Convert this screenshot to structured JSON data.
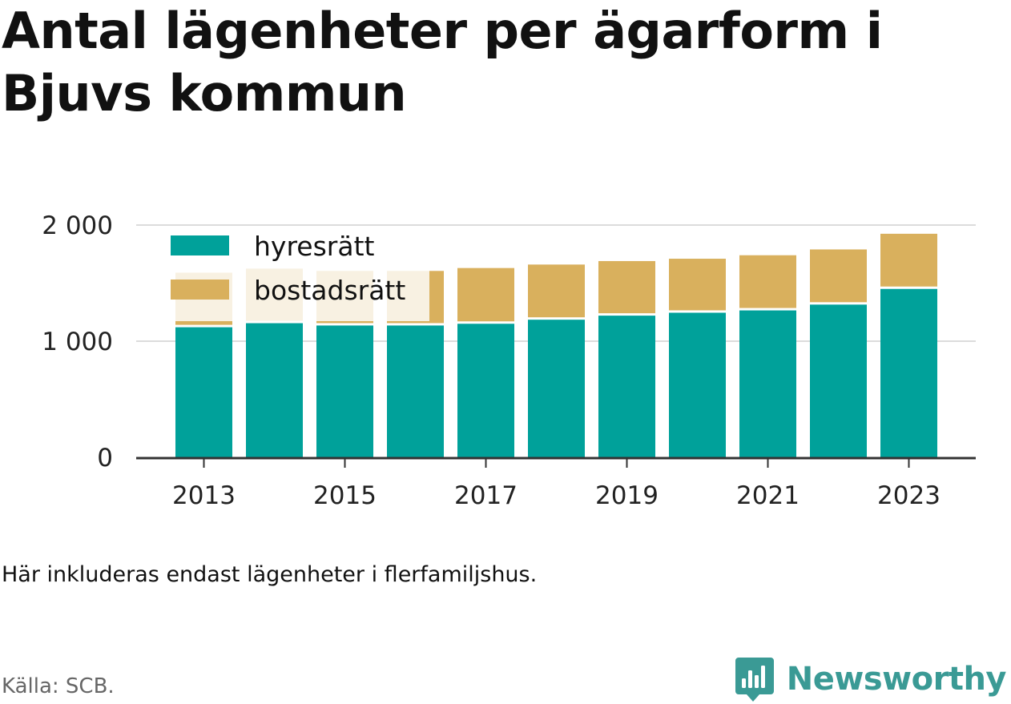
{
  "title": "Antal lägenheter per ägarform i Bjuvs kommun",
  "note": "Här inkluderas endast lägenheter i flerfamiljshus.",
  "source": "Källa: SCB.",
  "brand": "Newsworthy",
  "colors": {
    "hyresratt": "#00a19a",
    "bostadsratt": "#d9b05d",
    "grid": "#dcdcdc",
    "axis": "#333333",
    "brand": "#3a9a95"
  },
  "chart_data": {
    "type": "bar",
    "stacked": true,
    "title": "Antal lägenheter per ägarform i Bjuvs kommun",
    "x": [
      2013,
      2014,
      2015,
      2016,
      2017,
      2018,
      2019,
      2020,
      2021,
      2022,
      2023
    ],
    "x_tick_labels": [
      "2013",
      "2015",
      "2017",
      "2019",
      "2021",
      "2023"
    ],
    "x_ticks": [
      2013,
      2015,
      2017,
      2019,
      2021,
      2023
    ],
    "y_ticks": [
      0,
      1000,
      2000
    ],
    "y_tick_labels": [
      "0",
      "1 000",
      "2 000"
    ],
    "ylim": [
      0,
      2000
    ],
    "grid": true,
    "legend_position": "top-left",
    "series": [
      {
        "name": "hyresrätt",
        "values": [
          1120,
          1155,
          1135,
          1135,
          1150,
          1185,
          1220,
          1245,
          1265,
          1315,
          1450
        ]
      },
      {
        "name": "bostadsrätt",
        "values": [
          470,
          470,
          470,
          470,
          480,
          475,
          470,
          465,
          475,
          475,
          475
        ]
      }
    ],
    "xlabel": "",
    "ylabel": ""
  }
}
